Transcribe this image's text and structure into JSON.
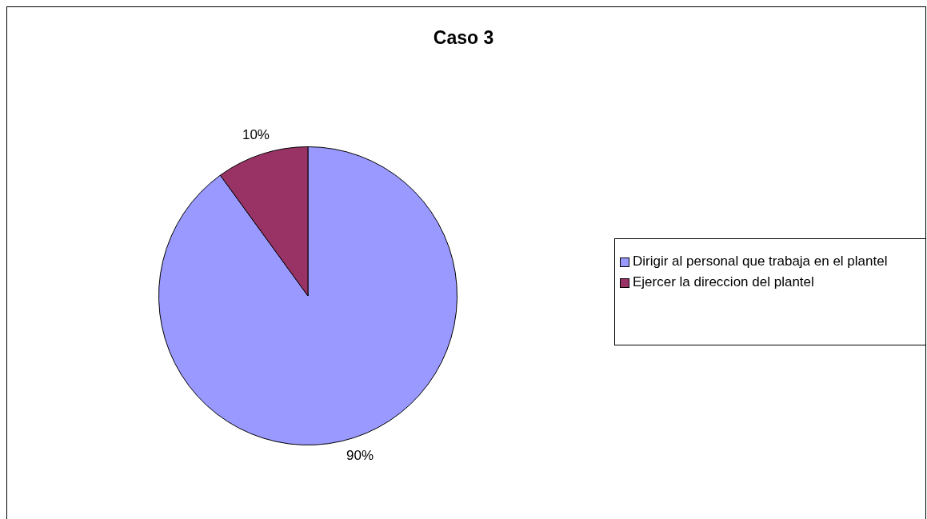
{
  "chart_data": {
    "type": "pie",
    "title": "Caso 3",
    "categories": [
      "Dirigir al personal que trabaja en el plantel",
      "Ejercer la direccion del plantel"
    ],
    "values": [
      90,
      10
    ],
    "colors": [
      "#9999ff",
      "#993366"
    ],
    "value_labels": [
      "90%",
      "10%"
    ],
    "legend": "right"
  }
}
